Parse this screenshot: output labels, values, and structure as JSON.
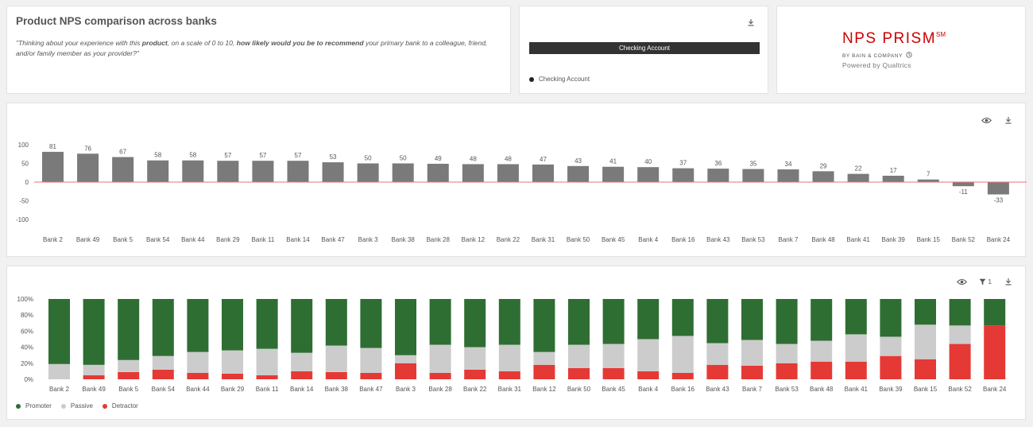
{
  "header": {
    "title": "Product NPS comparison across banks",
    "question_pre": "\"Thinking about your experience with this ",
    "question_b1": "product",
    "question_mid": ", on a scale of 0 to 10, ",
    "question_b2": "how likely would you be to recommend",
    "question_post": " your primary bank to a colleague, friend, and/or family member as your provider?\""
  },
  "filter": {
    "selected": "Checking Account",
    "legend_label": "Checking Account",
    "legend_color": "#222222"
  },
  "logo": {
    "brand": "NPS PRISM",
    "sup": "SM",
    "by": "BY BAIN & COMPANY",
    "powered": "Powered by Qualtrics"
  },
  "icons": {
    "download": "download-icon",
    "eye": "eye-icon",
    "filter": "filter-icon",
    "clock": "clock-icon"
  },
  "filter_count": "1",
  "colors": {
    "bar": "#7a7a7a",
    "zero_line": "#e8716f",
    "promoter": "#2e6e33",
    "passive": "#cccccc",
    "detractor": "#e53935"
  },
  "chart_data": [
    {
      "type": "bar",
      "title": "",
      "xlabel": "",
      "ylabel": "",
      "ylim": [
        -100,
        100
      ],
      "yticks": [
        100,
        50,
        0,
        -50,
        -100
      ],
      "categories": [
        "Bank 2",
        "Bank 49",
        "Bank 5",
        "Bank 54",
        "Bank 44",
        "Bank 29",
        "Bank 11",
        "Bank 14",
        "Bank 47",
        "Bank 3",
        "Bank 38",
        "Bank 28",
        "Bank 12",
        "Bank 22",
        "Bank 31",
        "Bank 50",
        "Bank 45",
        "Bank 4",
        "Bank 16",
        "Bank 43",
        "Bank 53",
        "Bank 7",
        "Bank 48",
        "Bank 41",
        "Bank 39",
        "Bank 15",
        "Bank 52",
        "Bank 24"
      ],
      "values": [
        81,
        76,
        67,
        58,
        58,
        57,
        57,
        57,
        53,
        50,
        50,
        49,
        48,
        48,
        47,
        43,
        41,
        40,
        37,
        36,
        35,
        34,
        29,
        22,
        17,
        7,
        -11,
        -33
      ],
      "grid": false
    },
    {
      "type": "bar",
      "stacked": true,
      "title": "",
      "xlabel": "",
      "ylabel": "",
      "ylim": [
        0,
        100
      ],
      "yticks": [
        "100%",
        "80%",
        "60%",
        "40%",
        "20%",
        "0%"
      ],
      "legend_position": "bottom-left",
      "categories": [
        "Bank 2",
        "Bank 49",
        "Bank 5",
        "Bank 54",
        "Bank 44",
        "Bank 29",
        "Bank 11",
        "Bank 14",
        "Bank 38",
        "Bank 47",
        "Bank 3",
        "Bank 28",
        "Bank 22",
        "Bank 31",
        "Bank 12",
        "Bank 50",
        "Bank 45",
        "Bank 4",
        "Bank 16",
        "Bank 43",
        "Bank 7",
        "Bank 53",
        "Bank 48",
        "Bank 41",
        "Bank 39",
        "Bank 15",
        "Bank 52",
        "Bank 24"
      ],
      "series": [
        {
          "name": "Detractor",
          "values": [
            0,
            5,
            9,
            12,
            8,
            7,
            5,
            10,
            9,
            8,
            20,
            8,
            12,
            10,
            18,
            14,
            14,
            10,
            8,
            18,
            17,
            20,
            22,
            22,
            29,
            25,
            44,
            67
          ]
        },
        {
          "name": "Passive",
          "values": [
            19,
            13,
            15,
            17,
            26,
            29,
            33,
            23,
            33,
            31,
            10,
            35,
            28,
            33,
            16,
            29,
            30,
            40,
            46,
            27,
            32,
            24,
            26,
            34,
            24,
            43,
            23,
            0
          ]
        },
        {
          "name": "Promoter",
          "values": [
            81,
            82,
            76,
            71,
            66,
            64,
            62,
            67,
            58,
            61,
            70,
            57,
            60,
            57,
            66,
            57,
            56,
            50,
            46,
            55,
            51,
            56,
            52,
            44,
            47,
            32,
            33,
            33
          ]
        }
      ],
      "grid": false
    }
  ]
}
